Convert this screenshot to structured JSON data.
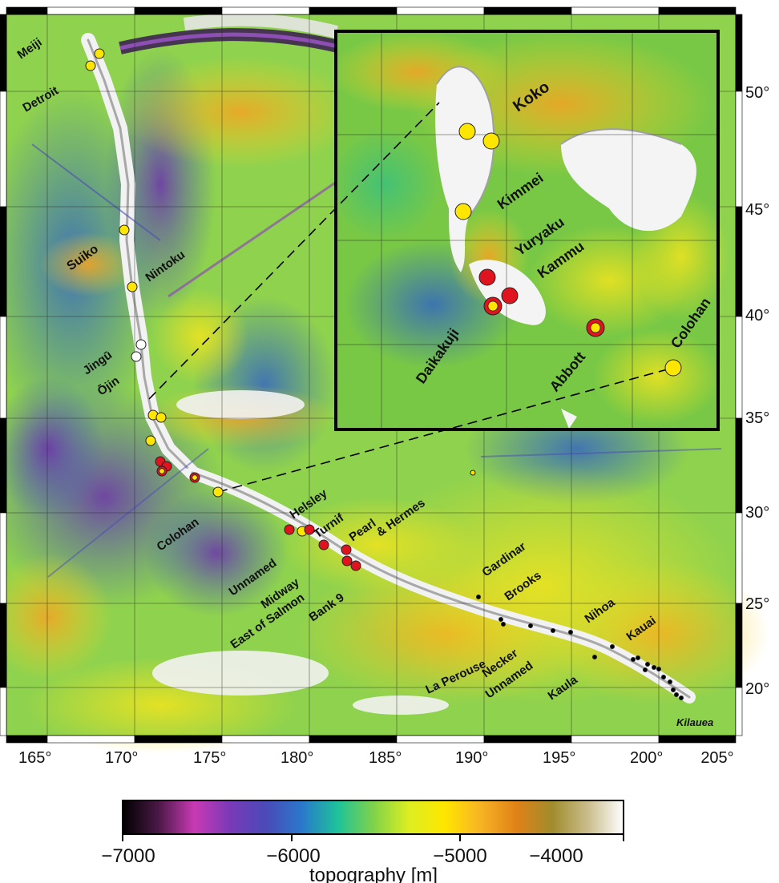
{
  "map": {
    "lon_ticks": [
      "165°",
      "170°",
      "175°",
      "180°",
      "185°",
      "190°",
      "195°",
      "200°",
      "205°"
    ],
    "lat_ticks": [
      "50°",
      "45°",
      "40°",
      "35°",
      "30°",
      "25°",
      "20°"
    ],
    "seamount_labels": {
      "meiji": "Meiji",
      "detroit": "Detroit",
      "suiko": "Suiko",
      "nintoku": "Nintoku",
      "jingu": "Jingū",
      "ojin": "Ōjin",
      "colohan": "Colohan",
      "helsley": "Helsley",
      "turnif": "Turnif",
      "unnamed_a": "Unnamed",
      "midway": "Midway",
      "east_of_salmon": "East of Salmon",
      "bank9": "Bank 9",
      "pearl": "Pearl",
      "hermes": "& Hermes",
      "gardinar": "Gardinar",
      "brooks": "Brooks",
      "la_perouse": "La Perouse",
      "necker": "Necker",
      "unnamed_b": "Unnamed",
      "nihoa": "Nihoa",
      "kauai": "Kauai",
      "kaula": "Kaula",
      "kilauea": "Kilauea"
    },
    "inset_labels": {
      "koko": "Koko",
      "kimmei": "Kimmei",
      "yuryaku": "Yuryaku",
      "kammu": "Kammu",
      "daikakuji": "Daikakuji",
      "abbott": "Abbott",
      "colohan": "Colohan"
    },
    "marker_colors": {
      "yellow": "#ffe600",
      "red": "#e0141e",
      "white": "#ffffff",
      "black": "#000000"
    }
  },
  "colorbar": {
    "ticks": [
      "−7000",
      "−6000",
      "−5000",
      "−4000"
    ],
    "label": "topography [m]",
    "stops": [
      "#000000",
      "#4a1846",
      "#c83ab4",
      "#7a3ab8",
      "#4a4ab8",
      "#2a78cc",
      "#1ec29a",
      "#7ed24a",
      "#dcee22",
      "#ffe600",
      "#f8b424",
      "#e08218",
      "#a08c2c",
      "#cabd8c",
      "#ffffff"
    ]
  }
}
